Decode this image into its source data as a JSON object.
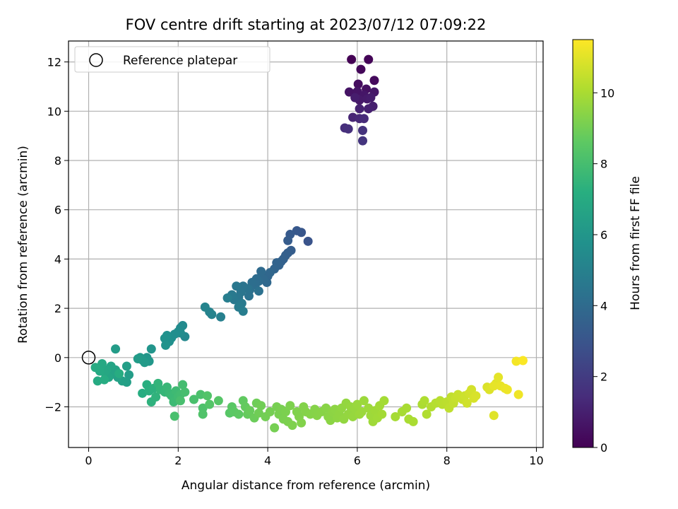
{
  "chart_data": {
    "type": "scatter",
    "title": "FOV centre drift starting at 2023/07/12 07:09:22",
    "xlabel": "Angular distance from reference (arcmin)",
    "ylabel": "Rotation from reference (arcmin)",
    "xlim": [
      -0.45,
      10.15
    ],
    "ylim": [
      -3.65,
      12.85
    ],
    "xticks": [
      0,
      2,
      4,
      6,
      8,
      10
    ],
    "yticks": [
      -2,
      0,
      2,
      4,
      6,
      8,
      10,
      12
    ],
    "grid": true,
    "legend": {
      "placement": "top-left",
      "entries": [
        {
          "label": "Reference platepar",
          "marker": "open-circle"
        }
      ]
    },
    "reference_point": {
      "x": 0,
      "y": 0
    },
    "colorbar": {
      "label": "Hours from first FF file",
      "colormap": "viridis",
      "range": [
        0,
        11.5
      ],
      "ticks": [
        0,
        2,
        4,
        6,
        8,
        10
      ]
    },
    "points": [
      {
        "x": 5.87,
        "y": 12.1,
        "c": 0.0
      },
      {
        "x": 6.25,
        "y": 12.1,
        "c": 0.1
      },
      {
        "x": 6.08,
        "y": 11.7,
        "c": 0.2
      },
      {
        "x": 6.38,
        "y": 11.25,
        "c": 0.3
      },
      {
        "x": 6.02,
        "y": 11.1,
        "c": 0.4
      },
      {
        "x": 6.2,
        "y": 10.9,
        "c": 0.5
      },
      {
        "x": 5.82,
        "y": 10.78,
        "c": 0.6
      },
      {
        "x": 6.0,
        "y": 10.8,
        "c": 0.65
      },
      {
        "x": 6.15,
        "y": 10.65,
        "c": 0.7
      },
      {
        "x": 6.38,
        "y": 10.78,
        "c": 0.75
      },
      {
        "x": 6.05,
        "y": 10.45,
        "c": 0.8
      },
      {
        "x": 6.22,
        "y": 10.5,
        "c": 0.85
      },
      {
        "x": 6.3,
        "y": 10.55,
        "c": 0.9
      },
      {
        "x": 5.95,
        "y": 10.55,
        "c": 0.95
      },
      {
        "x": 6.35,
        "y": 10.2,
        "c": 1.0
      },
      {
        "x": 6.25,
        "y": 10.1,
        "c": 1.05
      },
      {
        "x": 6.05,
        "y": 10.1,
        "c": 1.1
      },
      {
        "x": 5.9,
        "y": 9.75,
        "c": 1.2
      },
      {
        "x": 6.05,
        "y": 9.7,
        "c": 1.3
      },
      {
        "x": 6.15,
        "y": 9.7,
        "c": 1.4
      },
      {
        "x": 5.72,
        "y": 9.32,
        "c": 1.5
      },
      {
        "x": 5.8,
        "y": 9.28,
        "c": 1.6
      },
      {
        "x": 6.12,
        "y": 9.22,
        "c": 1.7
      },
      {
        "x": 6.12,
        "y": 8.8,
        "c": 1.8
      },
      {
        "x": 4.9,
        "y": 4.72,
        "c": 3.0
      },
      {
        "x": 4.75,
        "y": 5.08,
        "c": 3.1
      },
      {
        "x": 4.65,
        "y": 5.15,
        "c": 3.2
      },
      {
        "x": 4.5,
        "y": 5.0,
        "c": 3.3
      },
      {
        "x": 4.45,
        "y": 4.75,
        "c": 3.35
      },
      {
        "x": 4.52,
        "y": 4.35,
        "c": 3.4
      },
      {
        "x": 4.45,
        "y": 4.25,
        "c": 3.45
      },
      {
        "x": 4.4,
        "y": 4.15,
        "c": 3.5
      },
      {
        "x": 4.35,
        "y": 4.0,
        "c": 3.55
      },
      {
        "x": 4.3,
        "y": 3.9,
        "c": 3.6
      },
      {
        "x": 4.25,
        "y": 3.75,
        "c": 3.65
      },
      {
        "x": 4.2,
        "y": 3.85,
        "c": 3.7
      },
      {
        "x": 4.15,
        "y": 3.6,
        "c": 3.75
      },
      {
        "x": 4.0,
        "y": 3.3,
        "c": 3.8
      },
      {
        "x": 4.05,
        "y": 3.45,
        "c": 3.85
      },
      {
        "x": 3.98,
        "y": 3.05,
        "c": 3.9
      },
      {
        "x": 3.9,
        "y": 3.2,
        "c": 3.95
      },
      {
        "x": 3.85,
        "y": 3.5,
        "c": 4.0
      },
      {
        "x": 3.8,
        "y": 3.1,
        "c": 4.05
      },
      {
        "x": 3.75,
        "y": 3.2,
        "c": 4.1
      },
      {
        "x": 3.72,
        "y": 2.95,
        "c": 4.15
      },
      {
        "x": 3.65,
        "y": 3.05,
        "c": 4.2
      },
      {
        "x": 3.6,
        "y": 2.75,
        "c": 4.25
      },
      {
        "x": 3.8,
        "y": 2.7,
        "c": 4.3
      },
      {
        "x": 3.58,
        "y": 2.5,
        "c": 4.35
      },
      {
        "x": 3.55,
        "y": 2.8,
        "c": 4.4
      },
      {
        "x": 3.45,
        "y": 2.9,
        "c": 4.45
      },
      {
        "x": 3.4,
        "y": 2.65,
        "c": 4.5
      },
      {
        "x": 3.35,
        "y": 2.45,
        "c": 4.55
      },
      {
        "x": 3.3,
        "y": 2.9,
        "c": 4.6
      },
      {
        "x": 3.25,
        "y": 2.35,
        "c": 4.65
      },
      {
        "x": 3.2,
        "y": 2.55,
        "c": 4.7
      },
      {
        "x": 3.42,
        "y": 2.2,
        "c": 4.75
      },
      {
        "x": 3.35,
        "y": 2.05,
        "c": 4.8
      },
      {
        "x": 3.45,
        "y": 1.88,
        "c": 4.85
      },
      {
        "x": 3.1,
        "y": 2.42,
        "c": 4.9
      },
      {
        "x": 2.95,
        "y": 1.65,
        "c": 5.0
      },
      {
        "x": 2.75,
        "y": 1.75,
        "c": 5.1
      },
      {
        "x": 2.7,
        "y": 1.85,
        "c": 5.15
      },
      {
        "x": 2.6,
        "y": 2.05,
        "c": 5.2
      },
      {
        "x": 2.15,
        "y": 0.85,
        "c": 5.4
      },
      {
        "x": 2.1,
        "y": 1.3,
        "c": 5.45
      },
      {
        "x": 2.05,
        "y": 1.2,
        "c": 5.5
      },
      {
        "x": 2.05,
        "y": 1.0,
        "c": 5.55
      },
      {
        "x": 2.0,
        "y": 1.05,
        "c": 5.6
      },
      {
        "x": 1.92,
        "y": 0.95,
        "c": 5.65
      },
      {
        "x": 1.85,
        "y": 0.8,
        "c": 5.7
      },
      {
        "x": 1.8,
        "y": 0.65,
        "c": 5.75
      },
      {
        "x": 1.75,
        "y": 0.9,
        "c": 5.8
      },
      {
        "x": 1.7,
        "y": 0.78,
        "c": 5.85
      },
      {
        "x": 1.72,
        "y": 0.5,
        "c": 5.9
      },
      {
        "x": 1.4,
        "y": 0.35,
        "c": 6.0
      },
      {
        "x": 1.3,
        "y": 0.0,
        "c": 6.05
      },
      {
        "x": 1.35,
        "y": -0.15,
        "c": 6.1
      },
      {
        "x": 1.2,
        "y": -0.1,
        "c": 6.15
      },
      {
        "x": 1.15,
        "y": 0.0,
        "c": 6.2
      },
      {
        "x": 1.25,
        "y": -0.2,
        "c": 6.25
      },
      {
        "x": 1.1,
        "y": -0.05,
        "c": 6.3
      },
      {
        "x": 0.6,
        "y": 0.35,
        "c": 6.35
      },
      {
        "x": 0.9,
        "y": -0.7,
        "c": 6.4
      },
      {
        "x": 0.85,
        "y": -0.35,
        "c": 6.45
      },
      {
        "x": 0.85,
        "y": -1.0,
        "c": 6.5
      },
      {
        "x": 0.75,
        "y": -0.95,
        "c": 6.55
      },
      {
        "x": 0.65,
        "y": -0.8,
        "c": 6.6
      },
      {
        "x": 0.6,
        "y": -0.5,
        "c": 6.65
      },
      {
        "x": 0.55,
        "y": -0.6,
        "c": 6.7
      },
      {
        "x": 0.5,
        "y": -0.35,
        "c": 6.75
      },
      {
        "x": 0.45,
        "y": -0.8,
        "c": 6.8
      },
      {
        "x": 0.4,
        "y": -0.5,
        "c": 6.85
      },
      {
        "x": 0.35,
        "y": -0.6,
        "c": 6.9
      },
      {
        "x": 0.3,
        "y": -0.25,
        "c": 6.95
      },
      {
        "x": 0.25,
        "y": -0.55,
        "c": 7.0
      },
      {
        "x": 0.2,
        "y": -0.95,
        "c": 7.05
      },
      {
        "x": 0.15,
        "y": -0.4,
        "c": 7.1
      },
      {
        "x": 0.35,
        "y": -0.9,
        "c": 7.12
      },
      {
        "x": 0.68,
        "y": -0.65,
        "c": 7.14
      },
      {
        "x": 1.2,
        "y": -1.45,
        "c": 7.2
      },
      {
        "x": 1.3,
        "y": -1.1,
        "c": 7.25
      },
      {
        "x": 1.35,
        "y": -1.35,
        "c": 7.3
      },
      {
        "x": 1.45,
        "y": -1.25,
        "c": 7.35
      },
      {
        "x": 1.4,
        "y": -1.8,
        "c": 7.4
      },
      {
        "x": 1.5,
        "y": -1.6,
        "c": 7.45
      },
      {
        "x": 1.55,
        "y": -1.05,
        "c": 7.5
      },
      {
        "x": 1.6,
        "y": -1.3,
        "c": 7.55
      },
      {
        "x": 1.7,
        "y": -1.4,
        "c": 7.6
      },
      {
        "x": 1.75,
        "y": -1.2,
        "c": 7.65
      },
      {
        "x": 1.8,
        "y": -1.45,
        "c": 7.7
      },
      {
        "x": 1.85,
        "y": -1.55,
        "c": 7.75
      },
      {
        "x": 1.9,
        "y": -1.8,
        "c": 7.8
      },
      {
        "x": 1.95,
        "y": -1.35,
        "c": 7.85
      },
      {
        "x": 2.0,
        "y": -1.6,
        "c": 7.9
      },
      {
        "x": 2.05,
        "y": -1.5,
        "c": 7.95
      },
      {
        "x": 2.1,
        "y": -1.1,
        "c": 8.0
      },
      {
        "x": 2.15,
        "y": -1.4,
        "c": 8.05
      },
      {
        "x": 2.05,
        "y": -1.75,
        "c": 8.1
      },
      {
        "x": 1.92,
        "y": -2.38,
        "c": 8.12
      },
      {
        "x": 2.35,
        "y": -1.7,
        "c": 8.15
      },
      {
        "x": 2.5,
        "y": -1.5,
        "c": 8.2
      },
      {
        "x": 2.55,
        "y": -2.05,
        "c": 8.25
      },
      {
        "x": 2.55,
        "y": -2.3,
        "c": 8.3
      },
      {
        "x": 2.65,
        "y": -1.55,
        "c": 8.35
      },
      {
        "x": 2.7,
        "y": -1.9,
        "c": 8.4
      },
      {
        "x": 2.9,
        "y": -1.75,
        "c": 8.45
      },
      {
        "x": 3.15,
        "y": -2.25,
        "c": 8.5
      },
      {
        "x": 3.2,
        "y": -2.0,
        "c": 8.55
      },
      {
        "x": 3.25,
        "y": -2.2,
        "c": 8.6
      },
      {
        "x": 3.35,
        "y": -2.3,
        "c": 8.65
      },
      {
        "x": 3.45,
        "y": -1.75,
        "c": 8.7
      },
      {
        "x": 3.5,
        "y": -2.0,
        "c": 8.75
      },
      {
        "x": 3.55,
        "y": -2.3,
        "c": 8.8
      },
      {
        "x": 3.6,
        "y": -2.15,
        "c": 8.85
      },
      {
        "x": 3.7,
        "y": -2.45,
        "c": 8.9
      },
      {
        "x": 3.75,
        "y": -1.85,
        "c": 8.95
      },
      {
        "x": 3.8,
        "y": -2.25,
        "c": 9.0
      },
      {
        "x": 3.85,
        "y": -1.95,
        "c": 9.02
      },
      {
        "x": 3.95,
        "y": -2.4,
        "c": 9.05
      },
      {
        "x": 4.05,
        "y": -2.2,
        "c": 9.08
      },
      {
        "x": 4.15,
        "y": -2.85,
        "c": 9.1
      },
      {
        "x": 4.2,
        "y": -2.0,
        "c": 9.12
      },
      {
        "x": 4.25,
        "y": -2.3,
        "c": 9.14
      },
      {
        "x": 4.3,
        "y": -2.1,
        "c": 9.16
      },
      {
        "x": 4.35,
        "y": -2.5,
        "c": 9.18
      },
      {
        "x": 4.4,
        "y": -2.2,
        "c": 9.2
      },
      {
        "x": 4.45,
        "y": -2.6,
        "c": 9.22
      },
      {
        "x": 4.5,
        "y": -1.95,
        "c": 9.24
      },
      {
        "x": 4.55,
        "y": -2.75,
        "c": 9.26
      },
      {
        "x": 4.65,
        "y": -2.2,
        "c": 9.28
      },
      {
        "x": 4.7,
        "y": -2.4,
        "c": 9.3
      },
      {
        "x": 4.75,
        "y": -2.65,
        "c": 9.32
      },
      {
        "x": 4.8,
        "y": -2.0,
        "c": 9.34
      },
      {
        "x": 4.85,
        "y": -2.2,
        "c": 9.36
      },
      {
        "x": 4.95,
        "y": -2.3,
        "c": 9.38
      },
      {
        "x": 5.05,
        "y": -2.1,
        "c": 9.4
      },
      {
        "x": 5.1,
        "y": -2.35,
        "c": 9.42
      },
      {
        "x": 5.2,
        "y": -2.2,
        "c": 9.44
      },
      {
        "x": 5.3,
        "y": -2.05,
        "c": 9.46
      },
      {
        "x": 5.35,
        "y": -2.4,
        "c": 9.48
      },
      {
        "x": 5.4,
        "y": -2.55,
        "c": 9.5
      },
      {
        "x": 5.45,
        "y": -2.2,
        "c": 9.52
      },
      {
        "x": 5.5,
        "y": -2.1,
        "c": 9.54
      },
      {
        "x": 5.55,
        "y": -2.45,
        "c": 9.56
      },
      {
        "x": 5.6,
        "y": -2.3,
        "c": 9.58
      },
      {
        "x": 5.65,
        "y": -2.05,
        "c": 9.6
      },
      {
        "x": 5.7,
        "y": -2.5,
        "c": 9.62
      },
      {
        "x": 5.75,
        "y": -1.85,
        "c": 9.64
      },
      {
        "x": 5.8,
        "y": -2.3,
        "c": 9.66
      },
      {
        "x": 5.85,
        "y": -2.0,
        "c": 9.68
      },
      {
        "x": 5.9,
        "y": -2.4,
        "c": 9.7
      },
      {
        "x": 5.95,
        "y": -2.1,
        "c": 9.72
      },
      {
        "x": 6.0,
        "y": -1.9,
        "c": 9.74
      },
      {
        "x": 6.05,
        "y": -2.3,
        "c": 9.76
      },
      {
        "x": 6.1,
        "y": -2.2,
        "c": 9.78
      },
      {
        "x": 6.15,
        "y": -1.75,
        "c": 9.8
      },
      {
        "x": 6.25,
        "y": -2.05,
        "c": 9.82
      },
      {
        "x": 6.3,
        "y": -2.35,
        "c": 9.84
      },
      {
        "x": 6.35,
        "y": -2.6,
        "c": 9.86
      },
      {
        "x": 6.4,
        "y": -2.15,
        "c": 9.88
      },
      {
        "x": 6.45,
        "y": -2.45,
        "c": 9.9
      },
      {
        "x": 6.5,
        "y": -1.95,
        "c": 9.92
      },
      {
        "x": 6.55,
        "y": -2.3,
        "c": 9.94
      },
      {
        "x": 6.6,
        "y": -1.75,
        "c": 9.96
      },
      {
        "x": 6.85,
        "y": -2.4,
        "c": 9.98
      },
      {
        "x": 7.0,
        "y": -2.2,
        "c": 10.0
      },
      {
        "x": 7.1,
        "y": -2.05,
        "c": 10.02
      },
      {
        "x": 7.15,
        "y": -2.5,
        "c": 10.04
      },
      {
        "x": 7.25,
        "y": -2.6,
        "c": 10.06
      },
      {
        "x": 7.45,
        "y": -1.9,
        "c": 10.1
      },
      {
        "x": 7.5,
        "y": -1.75,
        "c": 10.14
      },
      {
        "x": 7.55,
        "y": -2.3,
        "c": 10.18
      },
      {
        "x": 7.65,
        "y": -2.0,
        "c": 10.22
      },
      {
        "x": 7.75,
        "y": -1.85,
        "c": 10.26
      },
      {
        "x": 7.85,
        "y": -1.75,
        "c": 10.3
      },
      {
        "x": 7.9,
        "y": -1.9,
        "c": 10.34
      },
      {
        "x": 8.0,
        "y": -1.8,
        "c": 10.38
      },
      {
        "x": 8.05,
        "y": -2.05,
        "c": 10.42
      },
      {
        "x": 8.1,
        "y": -1.6,
        "c": 10.46
      },
      {
        "x": 8.15,
        "y": -1.85,
        "c": 10.5
      },
      {
        "x": 8.2,
        "y": -1.65,
        "c": 10.54
      },
      {
        "x": 8.25,
        "y": -1.5,
        "c": 10.58
      },
      {
        "x": 8.35,
        "y": -1.7,
        "c": 10.62
      },
      {
        "x": 8.4,
        "y": -1.55,
        "c": 10.66
      },
      {
        "x": 8.45,
        "y": -1.85,
        "c": 10.7
      },
      {
        "x": 8.5,
        "y": -1.45,
        "c": 10.74
      },
      {
        "x": 8.55,
        "y": -1.3,
        "c": 10.78
      },
      {
        "x": 8.6,
        "y": -1.65,
        "c": 10.82
      },
      {
        "x": 8.65,
        "y": -1.55,
        "c": 10.86
      },
      {
        "x": 8.9,
        "y": -1.2,
        "c": 10.9
      },
      {
        "x": 8.95,
        "y": -1.3,
        "c": 10.94
      },
      {
        "x": 9.05,
        "y": -2.35,
        "c": 10.98
      },
      {
        "x": 9.1,
        "y": -1.05,
        "c": 11.02
      },
      {
        "x": 9.15,
        "y": -0.8,
        "c": 11.06
      },
      {
        "x": 9.05,
        "y": -1.15,
        "c": 11.1
      },
      {
        "x": 9.2,
        "y": -1.15,
        "c": 11.14
      },
      {
        "x": 9.3,
        "y": -1.25,
        "c": 11.18
      },
      {
        "x": 9.35,
        "y": -1.3,
        "c": 11.22
      },
      {
        "x": 9.6,
        "y": -1.5,
        "c": 11.26
      },
      {
        "x": 9.55,
        "y": -0.15,
        "c": 11.35
      },
      {
        "x": 9.7,
        "y": -0.12,
        "c": 11.45
      }
    ]
  }
}
